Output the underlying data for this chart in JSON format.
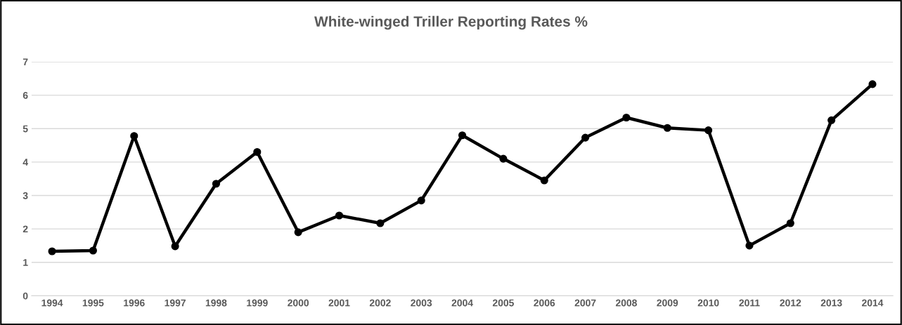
{
  "chart_data": {
    "type": "line",
    "title": "White-winged Triller Reporting Rates %",
    "categories": [
      "1994",
      "1995",
      "1996",
      "1997",
      "1998",
      "1999",
      "2000",
      "2001",
      "2002",
      "2003",
      "2004",
      "2005",
      "2006",
      "2007",
      "2008",
      "2009",
      "2010",
      "2011",
      "2012",
      "2013",
      "2014"
    ],
    "series": [
      {
        "color": "#000000",
        "values": [
          1.33,
          1.35,
          4.78,
          1.48,
          3.35,
          4.3,
          1.9,
          2.4,
          2.17,
          2.85,
          4.8,
          4.1,
          3.45,
          4.73,
          5.33,
          5.02,
          4.95,
          1.5,
          2.17,
          5.25,
          6.33
        ]
      }
    ],
    "ylim": [
      0,
      7
    ],
    "yticks": [
      0,
      1,
      2,
      3,
      4,
      5,
      6,
      7
    ],
    "grid": "y",
    "legend": false,
    "marker": "circle",
    "line_style": "solid"
  }
}
